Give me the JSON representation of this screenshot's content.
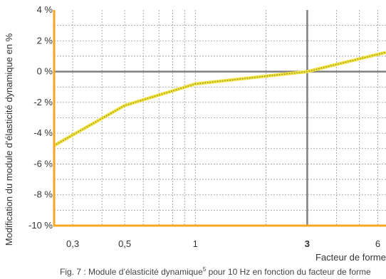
{
  "chart_data": {
    "type": "line",
    "xlabel": "Facteur de forme",
    "ylabel": "Modification du module d’élasticité dynamique en %",
    "x_scale": "log",
    "xlim": [
      0.25,
      6.5
    ],
    "ylim": [
      -10,
      4
    ],
    "x_ticks": [
      {
        "value": 0.3,
        "label": "0,3",
        "bold": false
      },
      {
        "value": 0.5,
        "label": "0,5",
        "bold": false
      },
      {
        "value": 1,
        "label": "1",
        "bold": false
      },
      {
        "value": 3,
        "label": "3",
        "bold": true
      },
      {
        "value": 6,
        "label": "6",
        "bold": false
      }
    ],
    "y_ticks": [
      {
        "value": 4,
        "label": "4 %"
      },
      {
        "value": 2,
        "label": "2 %"
      },
      {
        "value": 0,
        "label": "0 %"
      },
      {
        "value": -2,
        "label": "-2 %"
      },
      {
        "value": -4,
        "label": "-4 %"
      },
      {
        "value": -6,
        "label": "-6 %"
      },
      {
        "value": -8,
        "label": "-8 %"
      },
      {
        "value": -10,
        "label": "-10 %"
      }
    ],
    "reference_lines": {
      "x": 3,
      "y": 0
    },
    "grid": true,
    "series": [
      {
        "x": [
          0.25,
          0.5,
          1,
          3,
          6.5
        ],
        "values": [
          -4.8,
          -2.2,
          -0.8,
          0,
          1.25
        ]
      }
    ],
    "colors": {
      "axis": "#f5a623",
      "line": "#f0e040",
      "line_dots": "#8a8a20",
      "reference": "#7f7f7f",
      "grid": "#9a9a9a"
    }
  },
  "caption": {
    "prefix": "Fig. 7 : Module d’élasticité dynamique",
    "sup": "5",
    "suffix": " pour 10 Hz en fonction du facteur de forme"
  }
}
